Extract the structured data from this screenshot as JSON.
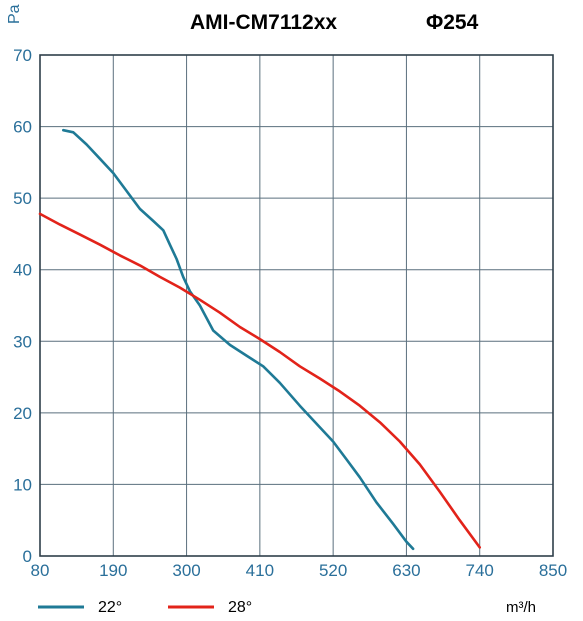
{
  "colors": {
    "series_22": "#1f7a96",
    "series_28": "#e2231a",
    "grid": "#5a6f7d",
    "tick": "#2a6f9a"
  },
  "chart_data": {
    "type": "line",
    "title": "AMI-CM7112xx",
    "title2": "Φ254",
    "ylabel": "Pa",
    "xlabel": "m³/h",
    "xlim": [
      80,
      850
    ],
    "ylim": [
      0,
      70
    ],
    "grid": true,
    "legend_position": "bottom-left",
    "x_ticks": [
      "80",
      "190",
      "300",
      "410",
      "520",
      "630",
      "740",
      "850"
    ],
    "y_ticks": [
      "0",
      "10",
      "20",
      "30",
      "40",
      "50",
      "60",
      "70"
    ],
    "series": [
      {
        "name": "22°",
        "color": "#1f7a96",
        "x": [
          115,
          130,
          150,
          170,
          190,
          210,
          230,
          250,
          265,
          275,
          285,
          295,
          305,
          320,
          340,
          365,
          390,
          415,
          440,
          470,
          500,
          520,
          540,
          560,
          585,
          610,
          630,
          640
        ],
        "y": [
          59.5,
          59.2,
          57.5,
          55.5,
          53.5,
          51,
          48.5,
          46.8,
          45.5,
          43.5,
          41.5,
          39,
          37,
          35,
          31.5,
          29.5,
          28,
          26.5,
          24.2,
          21,
          18,
          16,
          13.5,
          11,
          7.5,
          4.5,
          2,
          1
        ]
      },
      {
        "name": "28°",
        "color": "#e2231a",
        "x": [
          80,
          110,
          140,
          170,
          200,
          230,
          260,
          290,
          320,
          350,
          380,
          410,
          440,
          470,
          500,
          530,
          560,
          590,
          620,
          650,
          680,
          710,
          740
        ],
        "y": [
          47.8,
          46.3,
          44.9,
          43.5,
          42,
          40.6,
          39,
          37.5,
          35.8,
          34,
          32,
          30.3,
          28.5,
          26.5,
          24.8,
          23,
          21,
          18.7,
          16,
          12.8,
          9,
          5,
          1.2
        ]
      }
    ]
  }
}
